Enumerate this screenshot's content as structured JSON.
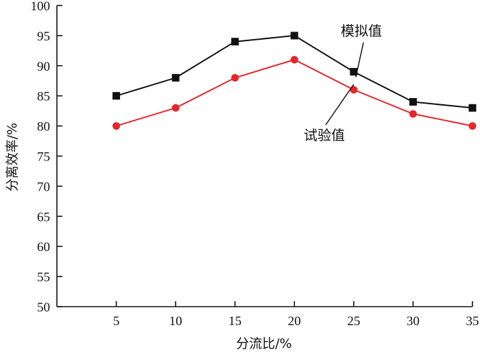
{
  "chart_data": {
    "type": "line",
    "x": [
      5,
      10,
      15,
      20,
      25,
      30,
      35
    ],
    "xlim": [
      0,
      35
    ],
    "ylim": [
      50,
      100
    ],
    "xticks": [
      5,
      10,
      15,
      20,
      25,
      30,
      35
    ],
    "yticks": [
      50,
      55,
      60,
      65,
      70,
      75,
      80,
      85,
      90,
      95,
      100
    ],
    "xlabel": "分流比/%",
    "ylabel": "分离效率/%",
    "grid": false,
    "series": [
      {
        "name": "模拟值",
        "marker": "square",
        "color": "#111111",
        "values": [
          85,
          88,
          94,
          95,
          89,
          84,
          83
        ]
      },
      {
        "name": "试验值",
        "marker": "circle",
        "color": "#e5262b",
        "values": [
          80,
          83,
          88,
          91,
          86,
          82,
          80
        ]
      }
    ],
    "annotations": [
      {
        "text": "模拟值",
        "series": 0,
        "point_index": 4
      },
      {
        "text": "试验值",
        "series": 1,
        "point_index": 4
      }
    ]
  }
}
